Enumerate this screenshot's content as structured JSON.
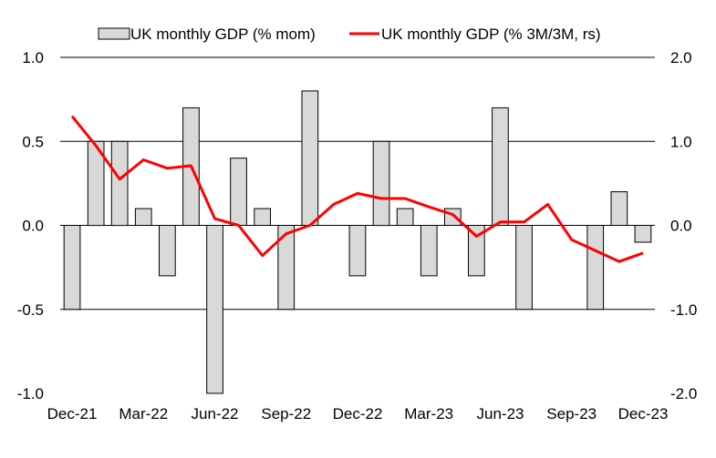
{
  "chart_data": {
    "type": "bar+line",
    "categories": [
      "Dec-21",
      "Jan-22",
      "Feb-22",
      "Mar-22",
      "Apr-22",
      "May-22",
      "Jun-22",
      "Jul-22",
      "Aug-22",
      "Sep-22",
      "Oct-22",
      "Nov-22",
      "Dec-22",
      "Jan-23",
      "Feb-23",
      "Mar-23",
      "Apr-23",
      "May-23",
      "Jun-23",
      "Jul-23",
      "Aug-23",
      "Sep-23",
      "Oct-23",
      "Nov-23",
      "Dec-23"
    ],
    "x_tick_labels": [
      "Dec-21",
      "Mar-22",
      "Jun-22",
      "Sep-22",
      "Dec-22",
      "Mar-23",
      "Jun-23",
      "Sep-23",
      "Dec-23"
    ],
    "series": [
      {
        "name": "UK monthly GDP (% mom)",
        "type": "bar",
        "axis": "left",
        "values": [
          -0.5,
          0.5,
          0.5,
          0.1,
          -0.3,
          0.7,
          -1.0,
          0.4,
          0.1,
          -0.5,
          0.8,
          0.0,
          -0.3,
          0.5,
          0.1,
          -0.3,
          0.1,
          -0.3,
          0.7,
          -0.5,
          0.0,
          0.0,
          -0.5,
          0.2,
          -0.1
        ]
      },
      {
        "name": "UK monthly GDP (% 3M/3M, rs)",
        "type": "line",
        "axis": "right",
        "values": [
          1.3,
          0.95,
          0.55,
          0.78,
          0.68,
          0.71,
          0.08,
          0.0,
          -0.36,
          -0.1,
          0.0,
          0.25,
          0.38,
          0.32,
          0.32,
          0.22,
          0.13,
          -0.13,
          0.04,
          0.04,
          0.25,
          -0.17,
          -0.3,
          -0.43,
          -0.33
        ]
      }
    ],
    "y_left": {
      "min": -1.0,
      "max": 1.0,
      "ticks": [
        "1.0",
        "0.5",
        "0.0",
        "-0.5",
        "-1.0"
      ]
    },
    "y_right": {
      "min": -2.0,
      "max": 2.0,
      "ticks": [
        "2.0",
        "1.0",
        "0.0",
        "-1.0",
        "-2.0"
      ]
    },
    "legend_position": "top",
    "colors": {
      "bar_fill": "#d9d9d9",
      "bar_stroke": "#000000",
      "line": "#ff0000",
      "grid": "#000000"
    }
  }
}
